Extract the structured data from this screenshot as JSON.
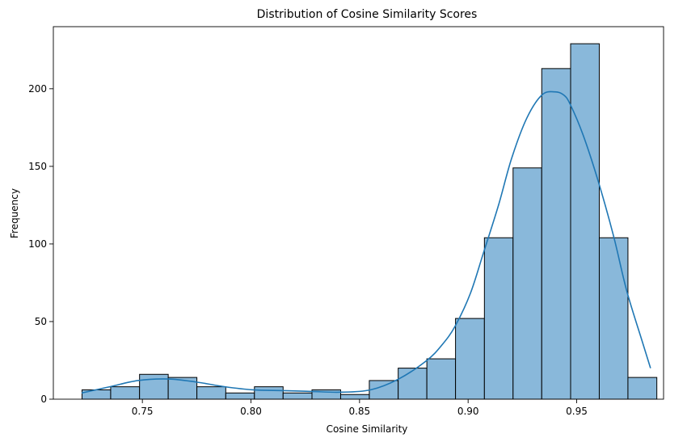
{
  "chart_data": {
    "type": "bar",
    "subtype": "histogram",
    "title": "Distribution of Cosine Similarity Scores",
    "xlabel": "Cosine Similarity",
    "ylabel": "Frequency",
    "xlim": [
      0.709,
      0.99
    ],
    "ylim": [
      0,
      240
    ],
    "xticks": [
      0.75,
      0.8,
      0.85,
      0.9,
      0.95
    ],
    "yticks": [
      0,
      50,
      100,
      150,
      200
    ],
    "xtick_labels": [
      "0.75",
      "0.80",
      "0.85",
      "0.90",
      "0.95"
    ],
    "ytick_labels": [
      "0",
      "50",
      "100",
      "150",
      "200"
    ],
    "bin_edges": [
      0.7222,
      0.7354,
      0.7487,
      0.7619,
      0.7751,
      0.7884,
      0.8016,
      0.8148,
      0.8281,
      0.8413,
      0.8545,
      0.8678,
      0.881,
      0.8942,
      0.9075,
      0.9207,
      0.9339,
      0.9472,
      0.9604,
      0.9736,
      0.9869
    ],
    "counts": [
      6,
      8,
      16,
      14,
      8,
      4,
      8,
      4,
      6,
      3,
      12,
      20,
      26,
      52,
      104,
      149,
      213,
      229,
      104,
      14
    ],
    "bar_color": "#89b8da",
    "kde_color": "#1f77b4",
    "kde": {
      "x": [
        0.722,
        0.735,
        0.748,
        0.762,
        0.775,
        0.788,
        0.801,
        0.815,
        0.828,
        0.841,
        0.855,
        0.868,
        0.881,
        0.888,
        0.894,
        0.901,
        0.907,
        0.914,
        0.92,
        0.927,
        0.934,
        0.94,
        0.944,
        0.947,
        0.953,
        0.96,
        0.967,
        0.973,
        0.98,
        0.984
      ],
      "y": [
        4,
        8,
        12,
        13,
        11,
        8,
        6,
        5.5,
        5,
        4.5,
        6,
        13,
        25,
        35,
        47,
        68,
        94,
        125,
        155,
        181,
        196,
        198,
        196,
        190,
        170,
        140,
        105,
        70,
        38,
        20
      ]
    },
    "grid": false,
    "legend": "none"
  }
}
